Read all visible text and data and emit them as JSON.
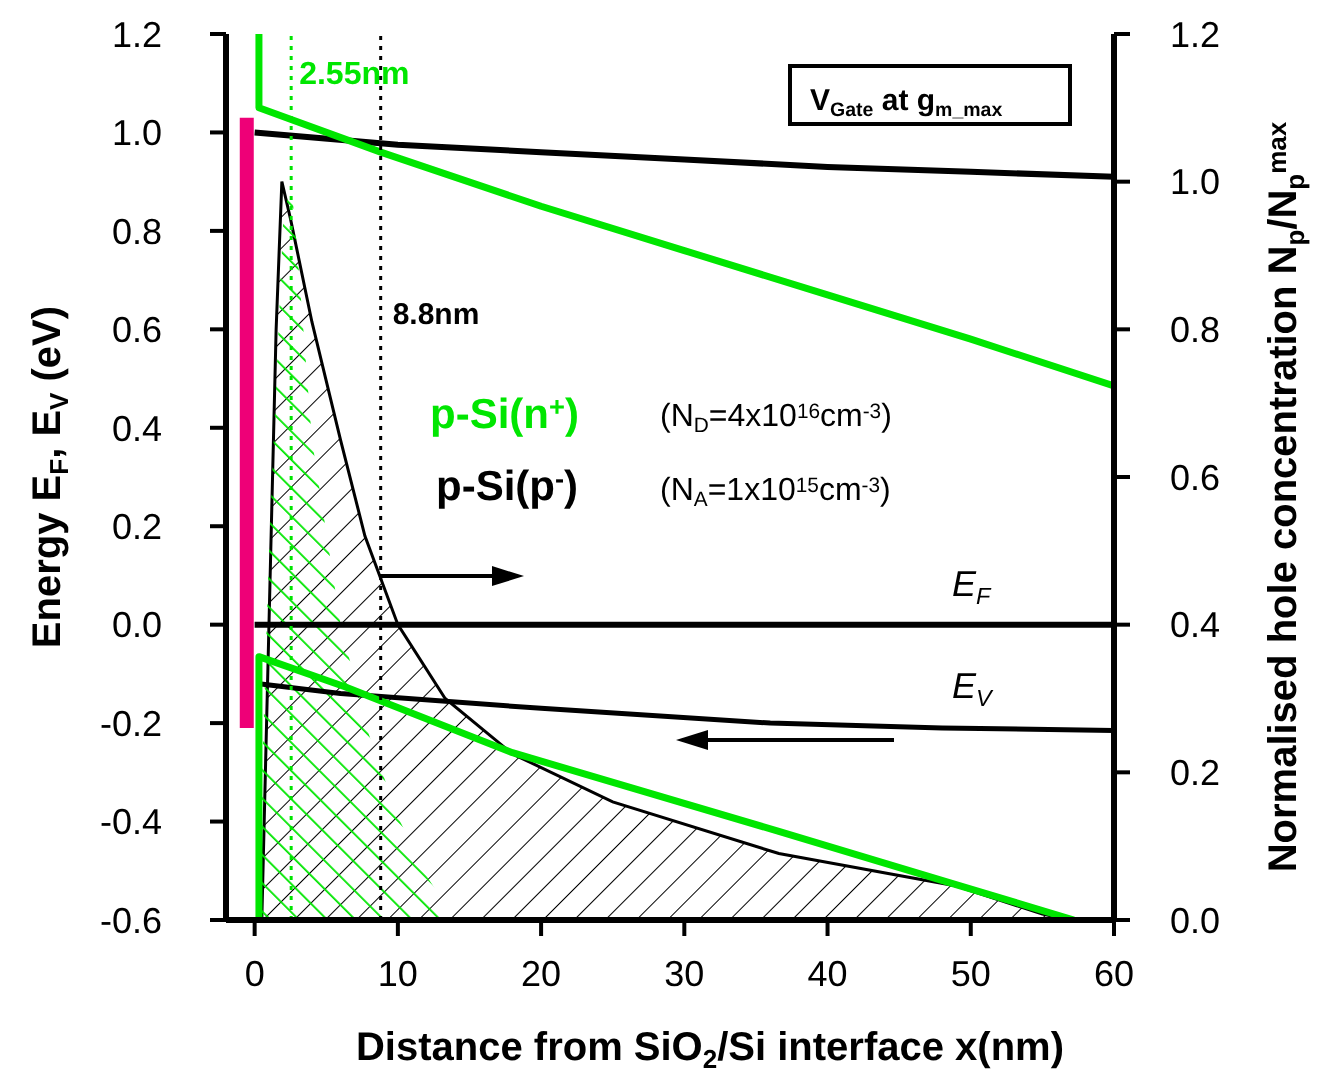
{
  "chart_data": {
    "type": "line",
    "xlabel": "Distance from SiO$_{2}$/Si interface x(nm)",
    "ylabel": "Energy E$_{F}$, E$_{V}$ (eV)",
    "y2label": "Normalised hole concentration N$_{p}$/N$_{p}$$^{max}$",
    "xlim": [
      -2,
      60
    ],
    "xticks": [
      0,
      10,
      20,
      30,
      40,
      50,
      60
    ],
    "ylim": [
      -0.6,
      1.2
    ],
    "yticks": [
      -0.6,
      -0.4,
      -0.2,
      {
        "value": 0,
        "label": "0.0"
      },
      0.2,
      0.4,
      0.6,
      0.8,
      {
        "value": 1,
        "label": "1.0"
      },
      1.2
    ],
    "y2lim": [
      0,
      1.2
    ],
    "y2ticks": [
      {
        "value": 0,
        "label": "0.0"
      },
      0.2,
      0.4,
      0.6,
      0.8,
      {
        "value": 1,
        "label": "1.0"
      },
      1.2
    ],
    "marker": "none",
    "series": [
      {
        "x": [
          -0.55,
          -0.55
        ],
        "values": [
          -0.21,
          1.03
        ],
        "color": "#ee0077"
      },
      {
        "x": [
          0,
          10,
          20,
          30,
          40,
          50,
          60
        ],
        "values": [
          1.0,
          0.975,
          0.96,
          0.945,
          0.93,
          0.92,
          0.91
        ],
        "color": "#000000"
      },
      {
        "x": [
          0,
          60
        ],
        "values": [
          0,
          0
        ],
        "color": "#000000"
      },
      {
        "x": [
          0.3,
          6,
          20,
          36,
          48,
          60
        ],
        "values": [
          -0.12,
          -0.14,
          -0.17,
          -0.2,
          -0.21,
          -0.215
        ],
        "color": "#000000"
      },
      {
        "x": [
          0.3,
          0.3,
          8.8,
          20,
          30,
          40,
          50,
          60
        ],
        "values": [
          1.2,
          1.05,
          0.96,
          0.85,
          0.76,
          0.67,
          0.58,
          0.485
        ],
        "color": "#00e600"
      },
      {
        "x": [
          0.3,
          0.3,
          6.3,
          18,
          36.6,
          49.2,
          57.2
        ],
        "values": [
          -0.6,
          -0.065,
          -0.126,
          -0.26,
          -0.42,
          -0.53,
          -0.6
        ],
        "color": "#00e600"
      },
      {
        "type": "area",
        "axis": "y2",
        "x": [
          0.5,
          1,
          1.5,
          1.9,
          2.5,
          4,
          6,
          7.7,
          10,
          13.3,
          18,
          25,
          36.6,
          49,
          55,
          57
        ],
        "values": [
          0,
          0.4,
          0.8,
          1.0,
          0.95,
          0.81,
          0.65,
          0.52,
          0.4,
          0.3,
          0.225,
          0.16,
          0.09,
          0.046,
          0.008,
          0
        ],
        "color": "#000000"
      },
      {
        "type": "area",
        "axis": "y2",
        "x": [
          0.2,
          1,
          2,
          2.55,
          3,
          4,
          6,
          8,
          10,
          12,
          14
        ],
        "values": [
          0,
          0.5,
          0.95,
          1.0,
          0.9,
          0.65,
          0.4,
          0.25,
          0.14,
          0.06,
          0
        ],
        "color": "#00e600"
      }
    ],
    "ref_lines": [
      {
        "axis": "x",
        "value": 2.55,
        "label": "2.55nm",
        "color": "#00e600",
        "line_style": "dotted"
      },
      {
        "axis": "x",
        "value": 8.8,
        "label": "8.8nm",
        "color": "#000000",
        "line_style": "dotted"
      }
    ],
    "annotations": [
      "V$_{Gate}$ at g$_{m_max}$",
      "p-Si(n$^{+}$)",
      "(N$_{D}$=4x10$^{16}$cm$^{-3}$)",
      "p-Si(p$^{-}$)",
      "(N$_{A}$=1x10$^{15}$cm$^{-3}$)",
      "E$_{F}$",
      "E$_{V}$"
    ]
  }
}
